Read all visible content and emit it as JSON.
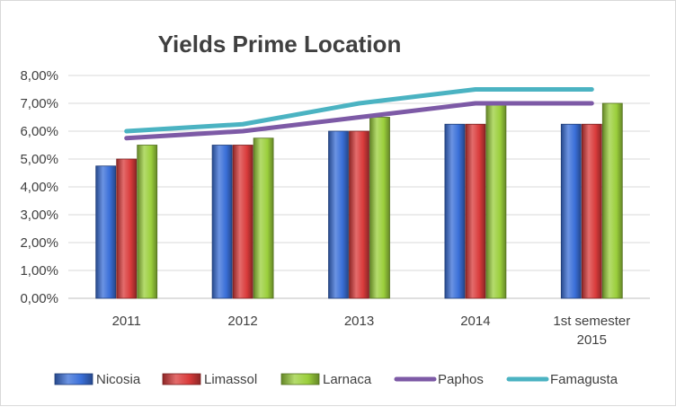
{
  "chart_data": {
    "type": "bar",
    "title": "Yields Prime Location",
    "categories": [
      "2011",
      "2012",
      "2013",
      "2014",
      "1st semester 2015"
    ],
    "category_labels": [
      [
        "2011"
      ],
      [
        "2012"
      ],
      [
        "2013"
      ],
      [
        "2014"
      ],
      [
        "1st semester",
        "2015"
      ]
    ],
    "y_tick_labels": [
      "0,00%",
      "1,00%",
      "2,00%",
      "3,00%",
      "4,00%",
      "5,00%",
      "6,00%",
      "7,00%",
      "8,00%"
    ],
    "ylim": [
      0,
      8
    ],
    "grid": true,
    "legend_position": "bottom",
    "series": [
      {
        "name": "Nicosia",
        "kind": "bar",
        "color": "#3a6fd8",
        "values": [
          4.75,
          5.5,
          6.0,
          6.25,
          6.25
        ]
      },
      {
        "name": "Limassol",
        "kind": "bar",
        "color": "#d93b3b",
        "values": [
          5.0,
          5.5,
          6.0,
          6.25,
          6.25
        ]
      },
      {
        "name": "Larnaca",
        "kind": "bar",
        "color": "#9bcf3c",
        "values": [
          5.5,
          5.75,
          6.5,
          7.0,
          7.0
        ]
      },
      {
        "name": "Paphos",
        "kind": "line",
        "color": "#7d5aa6",
        "values": [
          5.75,
          6.0,
          6.5,
          7.0,
          7.0
        ]
      },
      {
        "name": "Famagusta",
        "kind": "line",
        "color": "#4bb3c2",
        "values": [
          6.0,
          6.25,
          7.0,
          7.5,
          7.5
        ]
      }
    ]
  }
}
